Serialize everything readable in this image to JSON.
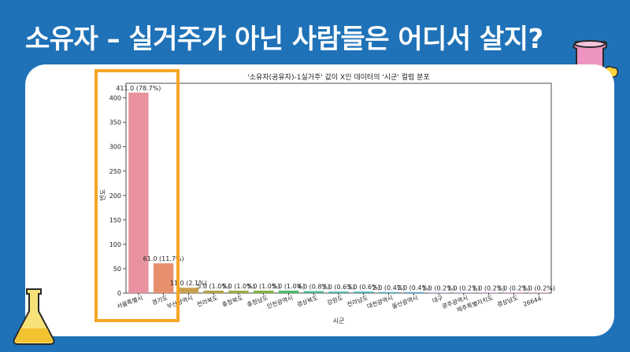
{
  "slide": {
    "title": "소유자 – 실거주가 아닌 사람들은 어디서 살지?"
  },
  "chart_data": {
    "type": "bar",
    "title": "'소유자(공유자)-1실거주' 값이 X인 데이터의 '시군' 컬럼 분포",
    "xlabel": "시군",
    "ylabel": "빈도",
    "ylim": [
      0,
      430
    ],
    "yticks": [
      0,
      50,
      100,
      150,
      200,
      250,
      300,
      350,
      400
    ],
    "grid": false,
    "categories": [
      "서울특별시",
      "경기도",
      "부산광역시",
      "전라북도",
      "충청북도",
      "충청남도",
      "인천광역시",
      "경상북도",
      "강원도",
      "전라남도",
      "대전광역시",
      "울산광역시",
      "대구",
      "광주광역시",
      "제주특별자치도",
      "경상남도",
      "26644."
    ],
    "values": [
      411,
      61,
      11,
      5,
      5,
      5,
      5,
      4,
      3,
      3,
      2,
      2,
      1,
      1,
      1,
      1,
      1
    ],
    "value_labels": [
      "411.0 (78.7%)",
      "61.0 (11.7%)",
      "11.0 (2.1%)",
      "5.0 (1.0%)",
      "5.0 (1.0%)",
      "5.0 (1.0%)",
      "5.0 (1.0%)",
      "4.0 (0.8%)",
      "3.0 (0.6%)",
      "3.0 (0.6%)",
      "2.0 (0.4%)",
      "2.0 (0.4%)",
      "1.0 (0.2%)",
      "1.0 (0.2%)",
      "1.0 (0.2%)",
      "1.0 (0.2%)",
      "1.0 (0.2%)"
    ],
    "colors": [
      "#e8939f",
      "#e6906e",
      "#c9a04d",
      "#b0a348",
      "#9eaa45",
      "#82b146",
      "#4dba6a",
      "#4db58e",
      "#48b3a2",
      "#47b0b5",
      "#4aaec9",
      "#56a8dd",
      "#8a9ce7",
      "#b18ce6",
      "#d181dc",
      "#e379c2",
      "#e784ab"
    ]
  }
}
